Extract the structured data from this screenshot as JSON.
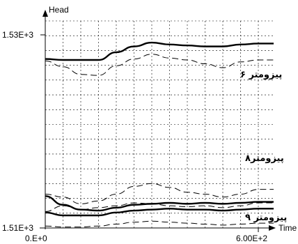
{
  "chart_data": {
    "type": "line",
    "xlabel": "Time",
    "ylabel": "Head",
    "x_ticks": [
      "0.E+0",
      "6.00E+2"
    ],
    "y_ticks": [
      "1.51E+3",
      "1.53E+3"
    ],
    "xlim": [
      0,
      600
    ],
    "ylim": [
      1510,
      1530
    ],
    "grid": true,
    "annotations": [
      "پیزومتر ۶",
      "پیزومتر۸",
      "پیزومتر ۹"
    ],
    "series": [
      {
        "style": "solid-thick",
        "x": [
          0,
          50,
          100,
          150,
          200,
          250,
          300,
          350,
          400,
          450,
          500,
          550,
          600
        ],
        "y": [
          1527.5,
          1527.4,
          1527.4,
          1527.4,
          1528.2,
          1528.8,
          1529.2,
          1529.0,
          1528.9,
          1528.8,
          1528.8,
          1529.0,
          1529.1
        ]
      },
      {
        "style": "dashed",
        "x": [
          0,
          50,
          100,
          150,
          200,
          250,
          300,
          350,
          400,
          450,
          500,
          550,
          600
        ],
        "y": [
          1527.3,
          1526.7,
          1525.9,
          1525.8,
          1526.8,
          1527.5,
          1528.0,
          1527.6,
          1527.4,
          1527.0,
          1526.6,
          1527.2,
          1527.4
        ]
      },
      {
        "style": "dashed",
        "x": [
          0,
          50,
          100,
          150,
          200,
          250,
          300,
          350,
          400,
          450,
          500,
          550,
          600
        ],
        "y": [
          1513.5,
          1513.2,
          1512.5,
          1512.8,
          1513.5,
          1514.3,
          1514.6,
          1514.2,
          1513.7,
          1513.5,
          1513.2,
          1513.5,
          1514.0
        ]
      },
      {
        "style": "solid-thick",
        "x": [
          0,
          50,
          100,
          150,
          200,
          250,
          300,
          350,
          400,
          450,
          500,
          550,
          600
        ],
        "y": [
          1513.3,
          1512.4,
          1511.9,
          1511.8,
          1512.1,
          1512.4,
          1512.5,
          1512.6,
          1512.5,
          1512.6,
          1512.5,
          1512.6,
          1512.7
        ]
      },
      {
        "style": "dashed",
        "x": [
          0,
          50,
          100,
          150,
          200,
          250,
          300,
          350,
          400,
          450,
          500,
          550,
          600
        ],
        "y": [
          1511.7,
          1512.3,
          1511.9,
          1512.1,
          1512.3,
          1512.6,
          1512.5,
          1512.3,
          1512.2,
          1512.3,
          1512.1,
          1512.3,
          1512.6
        ]
      },
      {
        "style": "solid-thick",
        "x": [
          0,
          50,
          100,
          150,
          200,
          250,
          300,
          350,
          400,
          450,
          500,
          550,
          600
        ],
        "y": [
          1511.6,
          1511.3,
          1511.3,
          1511.3,
          1511.6,
          1511.8,
          1511.9,
          1512.0,
          1511.9,
          1511.9,
          1511.8,
          1511.9,
          1512.0
        ]
      },
      {
        "style": "dashed",
        "x": [
          0,
          50,
          100,
          150,
          200,
          250,
          300,
          350,
          400,
          450,
          500,
          550,
          600
        ],
        "y": [
          1510.2,
          1510.1,
          1510.1,
          1510.2,
          1510.4,
          1510.6,
          1510.7,
          1510.6,
          1510.5,
          1510.4,
          1510.3,
          1510.4,
          1510.5
        ]
      }
    ]
  }
}
